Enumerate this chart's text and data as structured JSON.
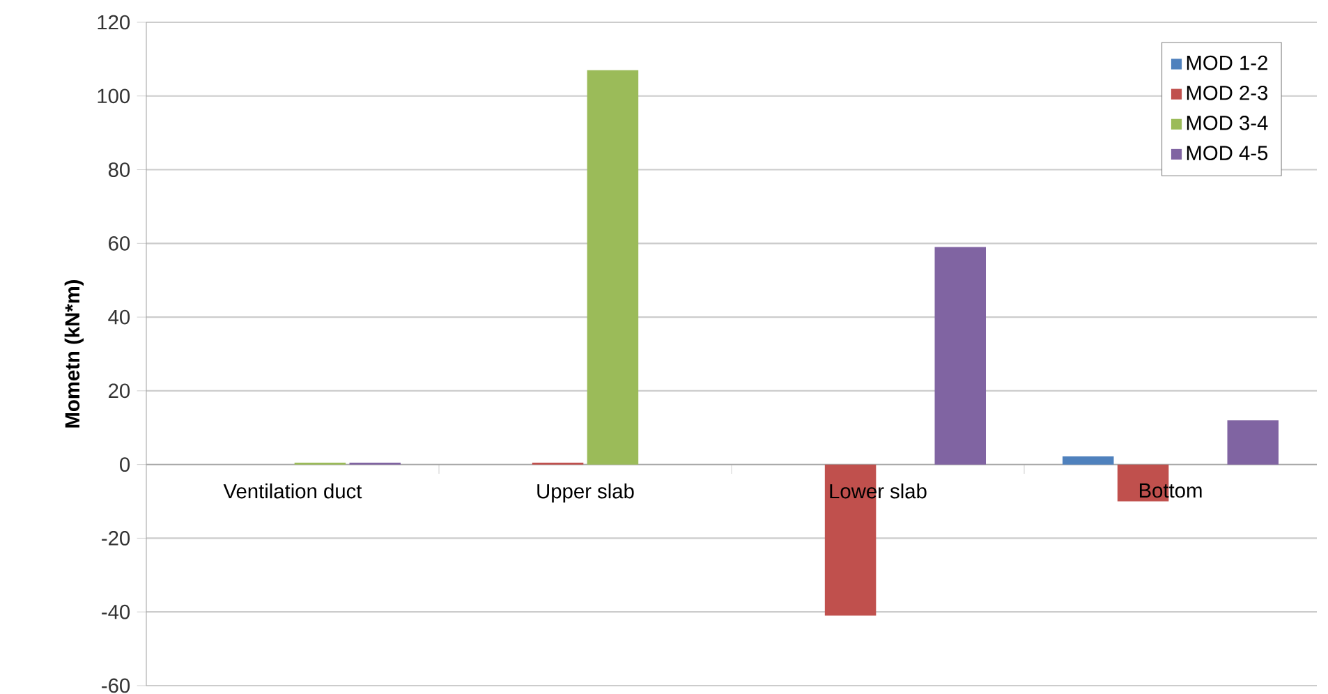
{
  "chart_data": {
    "type": "bar",
    "ylabel": "Mometn (kN*m)",
    "categories": [
      "Ventilation duct",
      "Upper slab",
      "Lower slab",
      "Bottom"
    ],
    "series": [
      {
        "name": "MOD 1-2",
        "color": "#4f81bd",
        "values": [
          0,
          0,
          0,
          2.2
        ]
      },
      {
        "name": "MOD 2-3",
        "color": "#c0504d",
        "values": [
          0,
          0.5,
          -41,
          -10
        ]
      },
      {
        "name": "MOD 3-4",
        "color": "#9bbb59",
        "values": [
          0.5,
          107,
          0,
          0
        ]
      },
      {
        "name": "MOD 4-5",
        "color": "#8064a2",
        "values": [
          0.5,
          0,
          59,
          12
        ]
      }
    ],
    "ylim": [
      -60,
      120
    ],
    "yticks": [
      -60,
      -40,
      -20,
      0,
      20,
      40,
      60,
      80,
      100,
      120
    ],
    "grid": "y",
    "legend": "top right"
  }
}
